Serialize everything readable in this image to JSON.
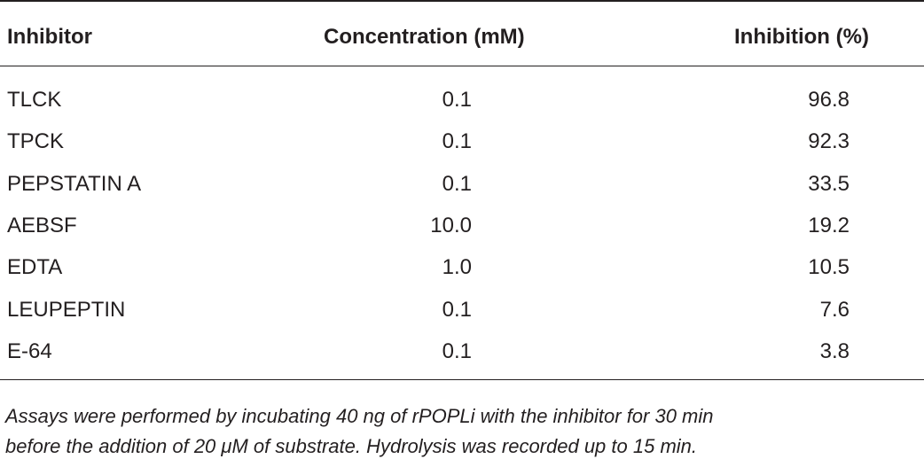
{
  "table": {
    "header": [
      "Inhibitor",
      "Concentration (mM)",
      "Inhibition (%)"
    ],
    "rows": [
      [
        "TLCK",
        "0.1",
        "96.8"
      ],
      [
        "TPCK",
        "0.1",
        "92.3"
      ],
      [
        "PEPSTATIN A",
        "0.1",
        "33.5"
      ],
      [
        "AEBSF",
        "10.0",
        "19.2"
      ],
      [
        "EDTA",
        "1.0",
        "10.5"
      ],
      [
        "LEUPEPTIN",
        "0.1",
        "7.6"
      ],
      [
        "E-64",
        "0.1",
        "3.8"
      ]
    ]
  },
  "footnote": [
    "Assays were performed by incubating 40 ng of rPOPLi with the inhibitor for 30 min",
    "before the addition of 20 μM of substrate. Hydrolysis was recorded up to 15 min."
  ]
}
